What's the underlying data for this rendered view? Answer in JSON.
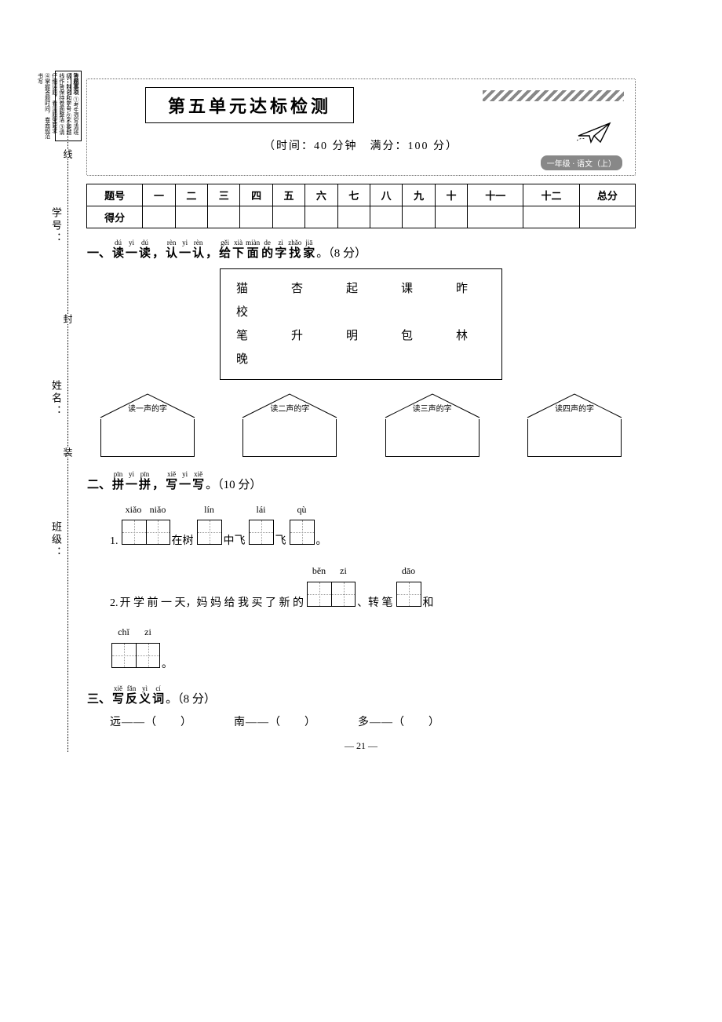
{
  "instruction_box": {
    "header": "答题事项",
    "lines": [
      "①考生须写清班级、姓名和学号",
      "②不要越线作答保持卷面整洁",
      "③请仔细读题，看清题型要求",
      "④掌握答题时间，卷面规范书写"
    ]
  },
  "left_rail": {
    "labels": [
      "学号：",
      "姓名：",
      "班级："
    ],
    "segments": [
      "线",
      "封",
      "装"
    ]
  },
  "header": {
    "title": "第五单元达标检测",
    "timing": "（时间：40 分钟　满分：100 分）",
    "grade_tag": "一年级 · 语文（上）"
  },
  "score_table": {
    "row_labels": [
      "题号",
      "得分"
    ],
    "columns": [
      "一",
      "二",
      "三",
      "四",
      "五",
      "六",
      "七",
      "八",
      "九",
      "十",
      "十一",
      "十二",
      "总分"
    ]
  },
  "section1": {
    "ruby": [
      {
        "py": "dú",
        "ch": "读"
      },
      {
        "py": "yi",
        "ch": "一"
      },
      {
        "py": "dú",
        "ch": "读"
      },
      {
        "py": "",
        "ch": "，"
      },
      {
        "py": "rèn",
        "ch": "认"
      },
      {
        "py": "yi",
        "ch": "一"
      },
      {
        "py": "rèn",
        "ch": "认"
      },
      {
        "py": "",
        "ch": "，"
      },
      {
        "py": "gěi",
        "ch": "给"
      },
      {
        "py": "xià",
        "ch": "下"
      },
      {
        "py": "miàn",
        "ch": "面"
      },
      {
        "py": "de",
        "ch": "的"
      },
      {
        "py": "zì",
        "ch": "字"
      },
      {
        "py": "zhǎo",
        "ch": "找"
      },
      {
        "py": "jiā",
        "ch": "家"
      }
    ],
    "prefix": "一、",
    "points": "。（8 分）",
    "chars_row1": "猫　杏　起　课　昨　校",
    "chars_row2": "笔　升　明　包　林　晚",
    "houses": [
      "读一声的字",
      "读二声的字",
      "读三声的字",
      "读四声的字"
    ]
  },
  "section2": {
    "prefix": "二、",
    "ruby": [
      {
        "py": "pīn",
        "ch": "拼"
      },
      {
        "py": "yi",
        "ch": "一"
      },
      {
        "py": "pīn",
        "ch": "拼"
      },
      {
        "py": "",
        "ch": "，"
      },
      {
        "py": "xiě",
        "ch": "写"
      },
      {
        "py": "yi",
        "ch": "一"
      },
      {
        "py": "xiě",
        "ch": "写"
      }
    ],
    "points": "。（10 分）",
    "q1": {
      "num": "1.",
      "grids": [
        {
          "py": [
            "xiǎo",
            "niǎo"
          ],
          "cells": 2
        },
        {
          "py": [
            "lín"
          ],
          "cells": 1
        },
        {
          "py": [
            "lái"
          ],
          "cells": 1
        },
        {
          "py": [
            "qù"
          ],
          "cells": 1
        }
      ],
      "texts": [
        "在树",
        "中飞",
        "飞",
        "。"
      ]
    },
    "q2": {
      "num": "2.",
      "pre": "开 学 前 一 天，妈 妈 给 我 买 了 新 的",
      "grids": [
        {
          "py": [
            "běn",
            "zi"
          ],
          "cells": 2
        },
        {
          "py": [
            "dāo"
          ],
          "cells": 1
        },
        {
          "py": [
            "chǐ",
            "zi"
          ],
          "cells": 2
        }
      ],
      "mid1": "、转 笔",
      "mid2": "和",
      "tail": "。"
    }
  },
  "section3": {
    "prefix": "三、",
    "ruby": [
      {
        "py": "xiě",
        "ch": "写"
      },
      {
        "py": "fǎn",
        "ch": "反"
      },
      {
        "py": "yì",
        "ch": "义"
      },
      {
        "py": "cí",
        "ch": "词"
      }
    ],
    "points": "。（8 分）",
    "items": [
      "远——（　　）",
      "南——（　　）",
      "多——（　　）"
    ]
  },
  "footer": "— 21 —",
  "colors": {
    "text": "#000000",
    "background": "#ffffff",
    "stripe": "#888888",
    "dotted": "#999999"
  }
}
